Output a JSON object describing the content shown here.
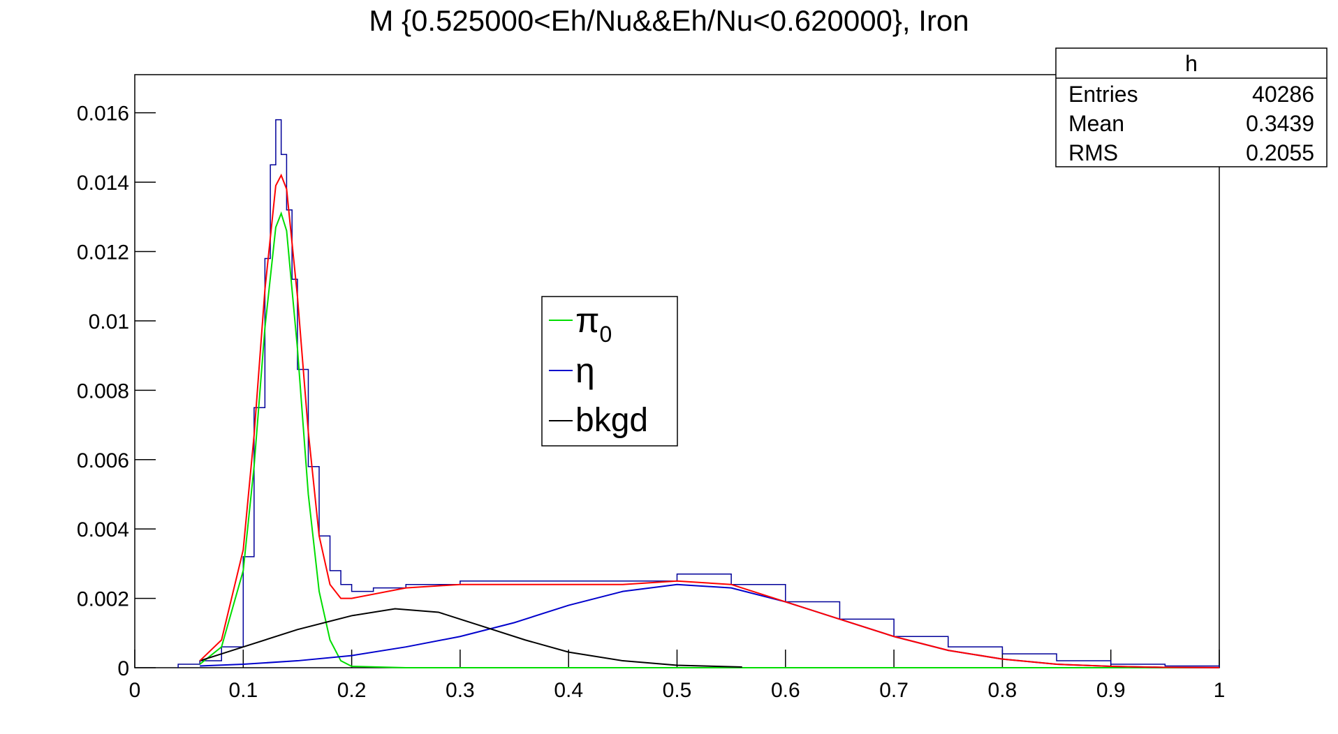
{
  "chart_data": {
    "type": "line",
    "title": "M {0.525000<Eh/Nu&&Eh/Nu<0.620000}, Iron",
    "xlabel": "",
    "ylabel": "",
    "xlim": [
      0,
      1
    ],
    "ylim": [
      0,
      0.0171
    ],
    "x_ticks": [
      0,
      0.1,
      0.2,
      0.3,
      0.4,
      0.5,
      0.6,
      0.7,
      0.8,
      0.9,
      1
    ],
    "x_tick_labels": [
      "0",
      "0.1",
      "0.2",
      "0.3",
      "0.4",
      "0.5",
      "0.6",
      "0.7",
      "0.8",
      "0.9",
      "1"
    ],
    "y_ticks": [
      0,
      0.002,
      0.004,
      0.006,
      0.008,
      0.01,
      0.012,
      0.014,
      0.016
    ],
    "y_tick_labels": [
      "0",
      "0.002",
      "0.004",
      "0.006",
      "0.008",
      "0.01",
      "0.012",
      "0.014",
      "0.016"
    ],
    "grid": false,
    "stats_box": {
      "title": "h",
      "rows": [
        {
          "label": "Entries",
          "value": "40286"
        },
        {
          "label": "Mean",
          "value": "0.3439"
        },
        {
          "label": "RMS",
          "value": "0.2055"
        }
      ],
      "placement": "top-right"
    },
    "legend": {
      "placement": "center",
      "entries": [
        {
          "label": "π",
          "subscript": "0",
          "color": "#00dd00"
        },
        {
          "label": "η",
          "subscript": "",
          "color": "#0000cc"
        },
        {
          "label": "bkgd",
          "subscript": "",
          "color": "#000000"
        }
      ]
    },
    "histogram": {
      "color": "#000099",
      "x": [
        0.04,
        0.06,
        0.08,
        0.1,
        0.11,
        0.12,
        0.125,
        0.13,
        0.135,
        0.14,
        0.145,
        0.15,
        0.16,
        0.17,
        0.18,
        0.19,
        0.2,
        0.22,
        0.25,
        0.3,
        0.35,
        0.4,
        0.45,
        0.5,
        0.55,
        0.6,
        0.65,
        0.7,
        0.75,
        0.8,
        0.85,
        0.9,
        0.95,
        1.0
      ],
      "values": [
        0.0001,
        0.0002,
        0.0006,
        0.0032,
        0.0075,
        0.0118,
        0.0145,
        0.0158,
        0.0148,
        0.0132,
        0.0112,
        0.0086,
        0.0058,
        0.0038,
        0.0028,
        0.0024,
        0.0022,
        0.0023,
        0.0024,
        0.0025,
        0.0025,
        0.0025,
        0.0025,
        0.0027,
        0.0024,
        0.0019,
        0.0014,
        0.0009,
        0.0006,
        0.0004,
        0.0002,
        0.0001,
        5e-05,
        3e-05
      ]
    },
    "series": [
      {
        "name": "π",
        "color": "#00dd00",
        "x": [
          0.06,
          0.08,
          0.1,
          0.11,
          0.12,
          0.13,
          0.135,
          0.14,
          0.15,
          0.16,
          0.17,
          0.18,
          0.19,
          0.2,
          0.25,
          0.3,
          0.4,
          0.5,
          0.6,
          0.7,
          0.8,
          0.9,
          1.0
        ],
        "y": [
          0.0001,
          0.0006,
          0.0028,
          0.0058,
          0.0098,
          0.0127,
          0.0131,
          0.0126,
          0.0092,
          0.005,
          0.0022,
          0.0008,
          0.0002,
          4e-05,
          0,
          0,
          0,
          0,
          0,
          0,
          0,
          0,
          0
        ]
      },
      {
        "name": "η",
        "color": "#0000cc",
        "x": [
          0.06,
          0.1,
          0.15,
          0.2,
          0.25,
          0.3,
          0.35,
          0.4,
          0.45,
          0.5,
          0.55,
          0.6,
          0.65,
          0.7,
          0.75,
          0.8,
          0.85,
          0.9,
          0.95,
          1.0
        ],
        "y": [
          5e-05,
          0.0001,
          0.0002,
          0.00035,
          0.0006,
          0.0009,
          0.0013,
          0.0018,
          0.0022,
          0.0024,
          0.0023,
          0.0019,
          0.0014,
          0.0009,
          0.0005,
          0.00025,
          0.0001,
          4e-05,
          1e-05,
          3e-06
        ]
      },
      {
        "name": "bkgd",
        "color": "#000000",
        "x": [
          0.06,
          0.1,
          0.15,
          0.2,
          0.24,
          0.28,
          0.32,
          0.36,
          0.4,
          0.45,
          0.5,
          0.56
        ],
        "y": [
          0.0002,
          0.0006,
          0.0011,
          0.0015,
          0.0017,
          0.0016,
          0.0012,
          0.0008,
          0.00045,
          0.0002,
          7e-05,
          2e-05
        ]
      },
      {
        "name": "",
        "color": "#ff0000",
        "x": [
          0.06,
          0.08,
          0.1,
          0.11,
          0.12,
          0.13,
          0.135,
          0.14,
          0.15,
          0.16,
          0.17,
          0.18,
          0.19,
          0.2,
          0.25,
          0.3,
          0.35,
          0.4,
          0.45,
          0.5,
          0.55,
          0.6,
          0.65,
          0.7,
          0.75,
          0.8,
          0.85,
          0.9,
          0.95,
          1.0
        ],
        "y": [
          0.0002,
          0.0008,
          0.0034,
          0.0067,
          0.0109,
          0.0139,
          0.0142,
          0.0138,
          0.0107,
          0.0068,
          0.0038,
          0.0024,
          0.002,
          0.002,
          0.0023,
          0.0024,
          0.0024,
          0.0024,
          0.0024,
          0.0025,
          0.0024,
          0.0019,
          0.0014,
          0.0009,
          0.0005,
          0.00025,
          0.0001,
          4e-05,
          1e-05,
          3e-06
        ]
      }
    ]
  }
}
